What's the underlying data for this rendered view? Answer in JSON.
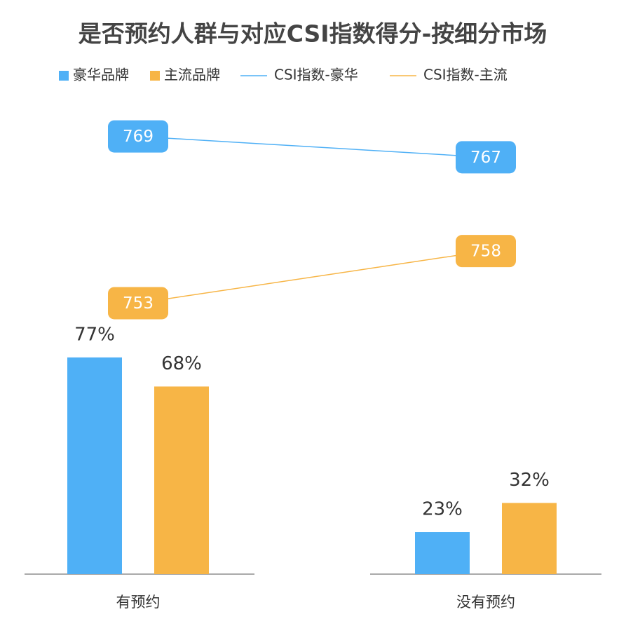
{
  "chart_data": {
    "type": "combo",
    "title": "是否预约人群与对应CSI指数得分-按细分市场",
    "categories": [
      "有预约",
      "没有预约"
    ],
    "series": [
      {
        "name": "豪华品牌",
        "type": "bar",
        "color": "#4fb0f6",
        "values": [
          77,
          23
        ],
        "value_labels": [
          "77%",
          "23%"
        ]
      },
      {
        "name": "主流品牌",
        "type": "bar",
        "color": "#f7b546",
        "values": [
          68,
          32
        ],
        "value_labels": [
          "68%",
          "32%"
        ]
      },
      {
        "name": "CSI指数-豪华",
        "type": "line",
        "axis": "y2",
        "color": "#4fb0f6",
        "values": [
          769,
          767
        ]
      },
      {
        "name": "CSI指数-主流",
        "type": "line",
        "axis": "y2",
        "color": "#f7b546",
        "values": [
          753,
          758
        ]
      }
    ],
    "ylim": [
      10,
      155
    ],
    "y2lim": [
      727,
      772
    ],
    "grid": false
  }
}
